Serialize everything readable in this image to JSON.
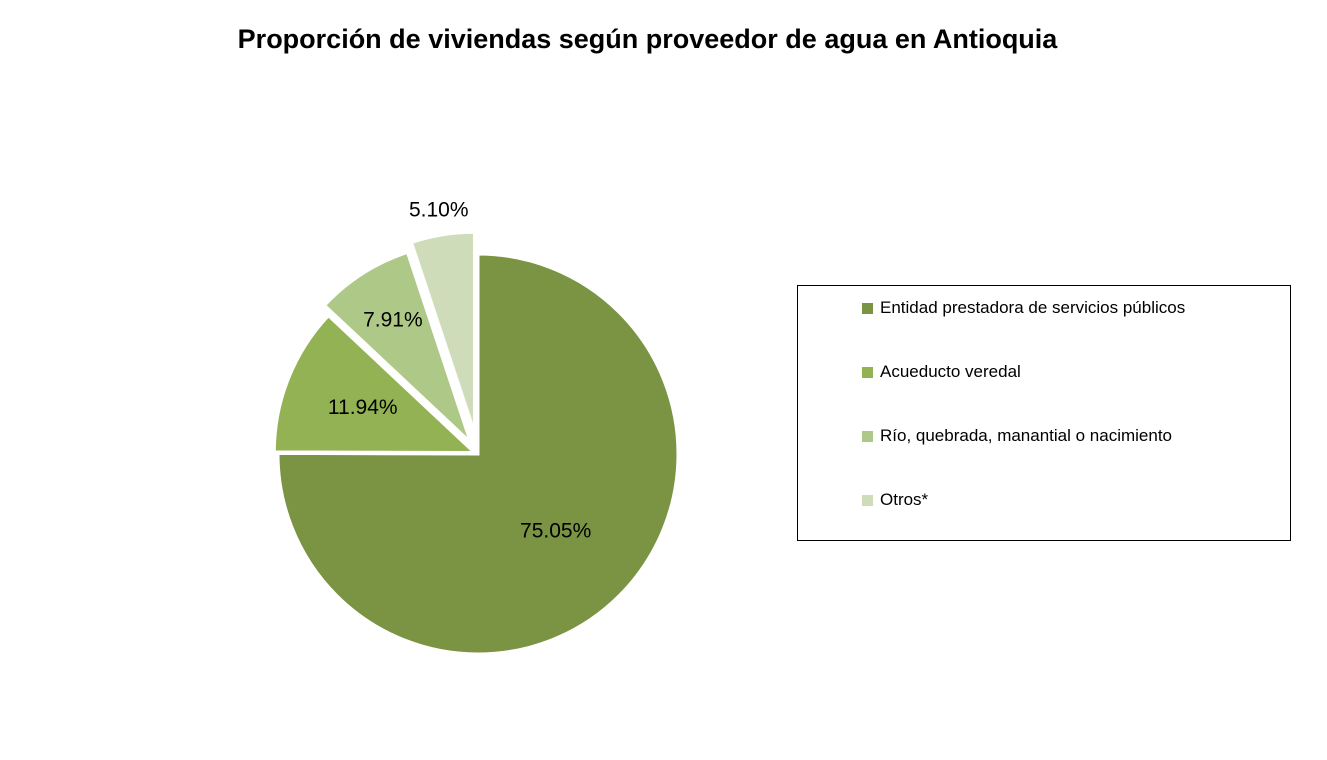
{
  "chart_data": {
    "type": "pie",
    "title": "Proporción de viviendas según proveedor de agua en Antioquia",
    "start_angle_deg": 0,
    "direction": "clockwise",
    "exploded": true,
    "legend_position": "right",
    "slices": [
      {
        "label": "Entidad prestadora de servicios públicos",
        "value": 75.05,
        "value_label": "75.05%",
        "color": "#7a9443"
      },
      {
        "label": "Acueducto veredal",
        "value": 11.94,
        "value_label": "11.94%",
        "color": "#93b254"
      },
      {
        "label": "Río, quebrada, manantial o nacimiento",
        "value": 7.91,
        "value_label": "7.91%",
        "color": "#aec887"
      },
      {
        "label": "Otros*",
        "value": 5.1,
        "value_label": "5.10%",
        "color": "#cfdcb9"
      }
    ]
  }
}
